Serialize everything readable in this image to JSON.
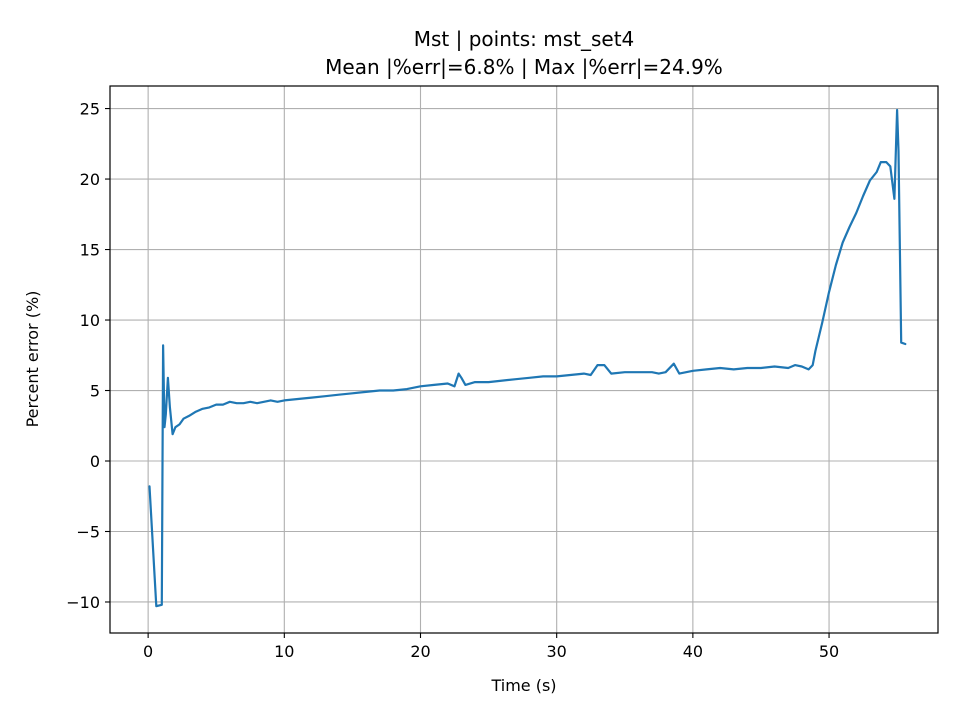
{
  "chart_data": {
    "type": "line",
    "title": "Mst | points: mst_set4",
    "subtitle": "Mean |%err|=6.8% | Max |%err|=24.9%",
    "xlabel": "Time (s)",
    "ylabel": "Percent error (%)",
    "xlim": [
      -2.8,
      58.0
    ],
    "ylim": [
      -12.2,
      26.6
    ],
    "xticks": [
      0,
      10,
      20,
      30,
      40,
      50
    ],
    "yticks": [
      -10,
      -5,
      0,
      5,
      10,
      15,
      20,
      25
    ],
    "xtick_labels": [
      "0",
      "10",
      "20",
      "30",
      "40",
      "50"
    ],
    "ytick_labels": [
      "−10",
      "−5",
      "0",
      "5",
      "10",
      "15",
      "20",
      "25"
    ],
    "grid": true,
    "color": "#1f77b4",
    "series": [
      {
        "x": [
          0.1,
          0.6,
          1.0,
          1.1,
          1.2,
          1.3,
          1.45,
          1.6,
          1.8,
          2.0,
          2.3,
          2.6,
          3.0,
          3.5,
          4.0,
          4.5,
          5.0,
          5.5,
          6.0,
          6.5,
          7.0,
          7.5,
          8.0,
          8.5,
          9.0,
          9.5,
          10.0,
          11.0,
          12.0,
          13.0,
          14.0,
          15.0,
          16.0,
          17.0,
          18.0,
          19.0,
          20.0,
          21.0,
          22.0,
          22.5,
          22.8,
          23.0,
          23.3,
          24.0,
          25.0,
          26.0,
          27.0,
          28.0,
          29.0,
          30.0,
          31.0,
          32.0,
          32.5,
          33.0,
          33.5,
          34.0,
          35.0,
          36.0,
          37.0,
          37.5,
          38.0,
          38.6,
          39.0,
          40.0,
          41.0,
          42.0,
          43.0,
          44.0,
          45.0,
          46.0,
          47.0,
          47.5,
          48.0,
          48.5,
          48.8,
          49.0,
          49.5,
          50.0,
          50.5,
          51.0,
          51.5,
          52.0,
          52.5,
          53.0,
          53.5,
          53.8,
          54.2,
          54.5,
          54.8,
          55.0,
          55.1,
          55.3,
          55.6
        ],
        "y": [
          -1.8,
          -10.3,
          -10.2,
          8.2,
          2.4,
          3.3,
          5.9,
          3.8,
          1.9,
          2.4,
          2.6,
          3.0,
          3.2,
          3.5,
          3.7,
          3.8,
          4.0,
          4.0,
          4.2,
          4.1,
          4.1,
          4.2,
          4.1,
          4.2,
          4.3,
          4.2,
          4.3,
          4.4,
          4.5,
          4.6,
          4.7,
          4.8,
          4.9,
          5.0,
          5.0,
          5.1,
          5.3,
          5.4,
          5.5,
          5.3,
          6.2,
          5.9,
          5.4,
          5.6,
          5.6,
          5.7,
          5.8,
          5.9,
          6.0,
          6.0,
          6.1,
          6.2,
          6.1,
          6.8,
          6.8,
          6.2,
          6.3,
          6.3,
          6.3,
          6.2,
          6.3,
          6.9,
          6.2,
          6.4,
          6.5,
          6.6,
          6.5,
          6.6,
          6.6,
          6.7,
          6.6,
          6.8,
          6.7,
          6.5,
          6.8,
          7.8,
          9.8,
          12.0,
          13.9,
          15.5,
          16.6,
          17.6,
          18.8,
          19.9,
          20.5,
          21.2,
          21.2,
          20.9,
          18.6,
          24.9,
          22.0,
          8.4,
          8.3
        ]
      }
    ]
  }
}
